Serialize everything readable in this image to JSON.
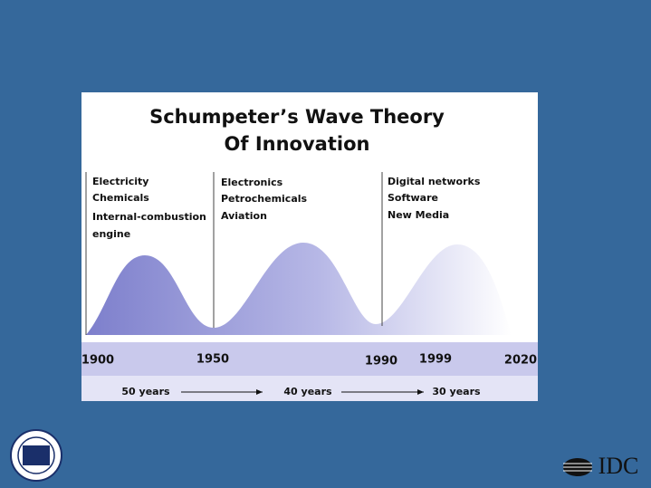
{
  "title": [
    "Schumpeter’s Wave Theory",
    "Of Innovation"
  ],
  "waves": [
    {
      "labels": [
        "Electricity",
        "Chemicals",
        "Internal-combustion",
        "engine"
      ]
    },
    {
      "labels": [
        "Electronics",
        "Petrochemicals",
        "Aviation"
      ]
    },
    {
      "labels": [
        "Digital networks",
        "Software",
        "New Media"
      ]
    }
  ],
  "timeline": [
    "1900",
    "1950",
    "1990",
    "1999",
    "2020"
  ],
  "durations": [
    "50 years",
    "40 years",
    "30 years"
  ],
  "logo": "IDC"
}
